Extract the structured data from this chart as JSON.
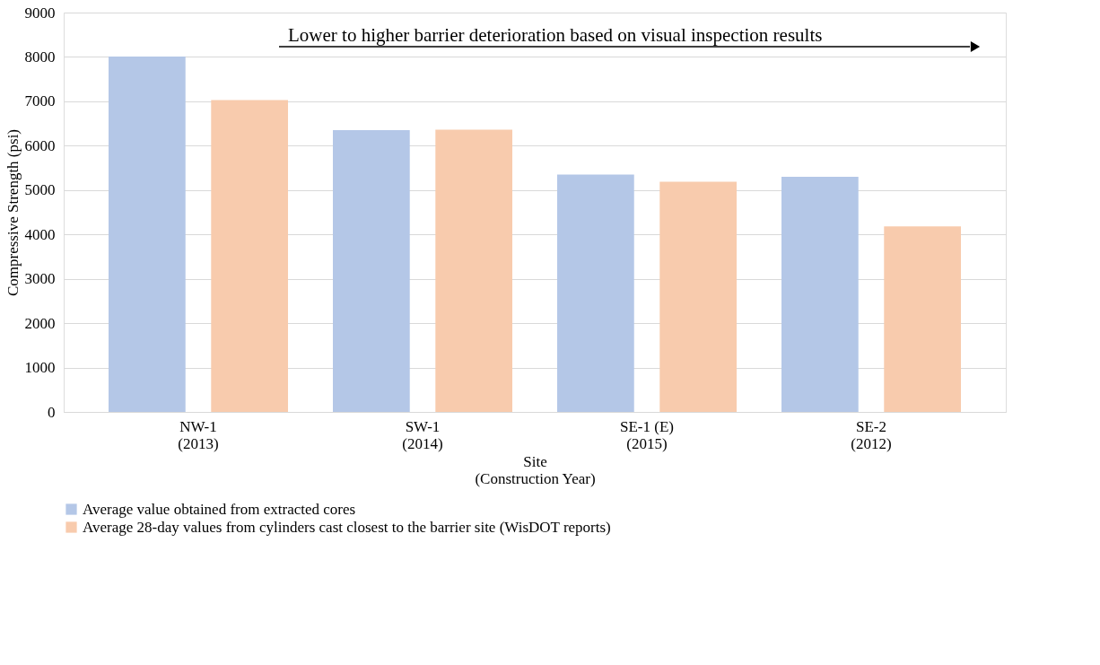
{
  "chart_data": {
    "type": "bar",
    "xlabel": "Site\n(Construction Year)",
    "ylabel": "Compressive  Strength (psi)",
    "categories": [
      "NW-1\n(2013)",
      "SW-1\n(2014)",
      "SE-1 (E)\n(2015)",
      "SE-2\n(2012)"
    ],
    "series": [
      {
        "name": "Average value obtained from extracted cores",
        "color": "#b4c7e7",
        "values": [
          8010,
          6350,
          5350,
          5300
        ]
      },
      {
        "name": "Average 28-day values from cylinders cast closest to the barrier site (WisDOT reports)",
        "color": "#f8cbad",
        "values": [
          7030,
          6360,
          5190,
          4180
        ]
      }
    ],
    "ylim": [
      0,
      9000
    ],
    "yticks": [
      0,
      1000,
      2000,
      3000,
      4000,
      5000,
      6000,
      7000,
      8000,
      9000
    ],
    "grid": "y",
    "legend": "bottom",
    "annotations": [
      "Lower to higher barrier deterioration based on visual inspection results"
    ]
  }
}
